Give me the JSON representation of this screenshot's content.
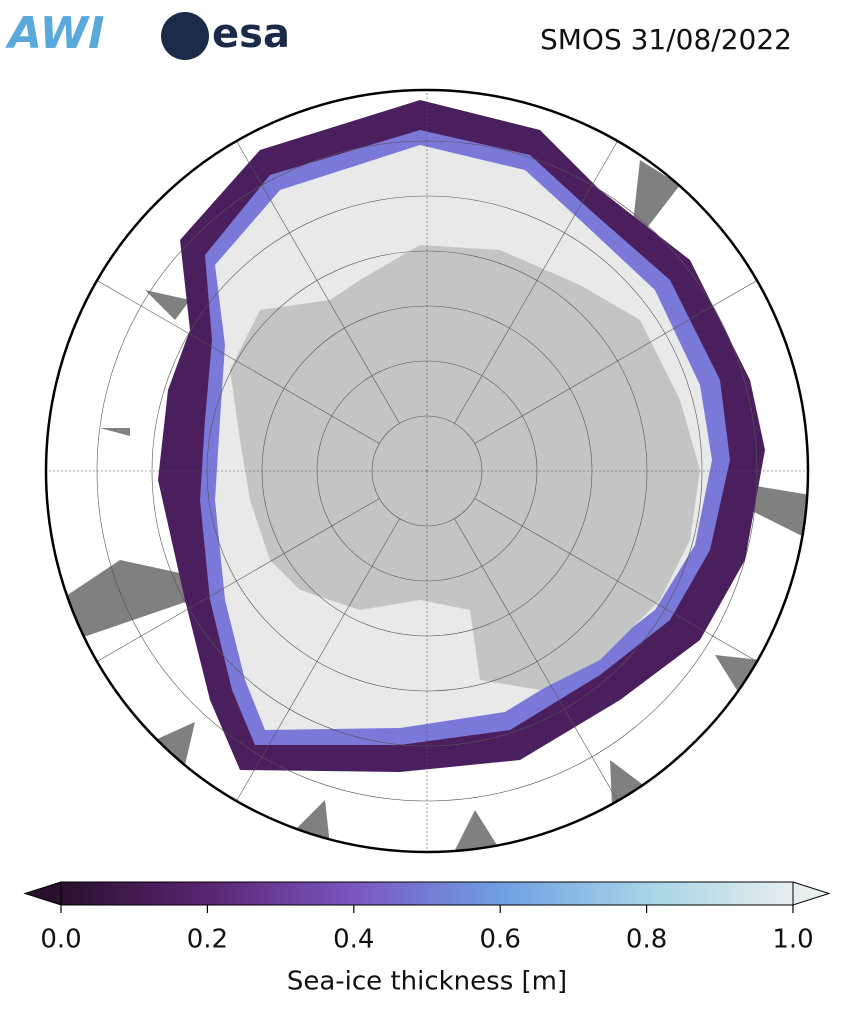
{
  "header": {
    "logos": [
      "AWI",
      "esa"
    ],
    "title": "SMOS 31/08/2022"
  },
  "colorbar": {
    "range": [
      0,
      1
    ],
    "ticks": [
      {
        "value": 0,
        "label": "0.0"
      },
      {
        "value": 0.2,
        "label": "0.2"
      },
      {
        "value": 0.4,
        "label": "0.4"
      },
      {
        "value": 0.6,
        "label": "0.6"
      },
      {
        "value": 0.8,
        "label": "0.8"
      },
      {
        "value": 1,
        "label": "1.0"
      }
    ],
    "label": "Sea-ice thickness [m]",
    "colors": [
      "#2a0f2e",
      "#5a2570",
      "#7a56c2",
      "#6e9fe3",
      "#a6d4e6",
      "#e6eeee"
    ]
  }
}
